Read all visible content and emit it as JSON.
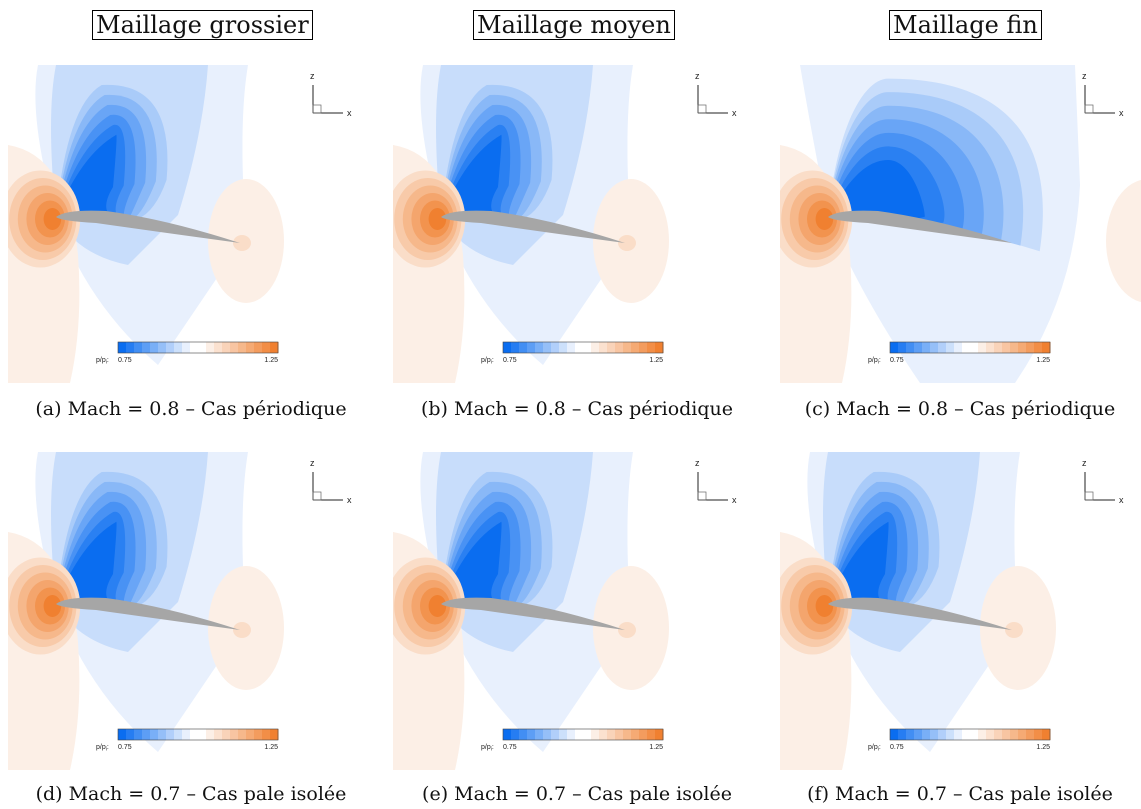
{
  "column_titles": [
    "Maillage grossier",
    "Maillage moyen",
    "Maillage fin"
  ],
  "panels": [
    {
      "caption": "(a) Mach = 0.8 – Cas périodique"
    },
    {
      "caption": "(b) Mach = 0.8 – Cas périodique"
    },
    {
      "caption": "(c) Mach = 0.8 – Cas périodique"
    },
    {
      "caption": "(d) Mach = 0.7 – Cas pale isolée"
    },
    {
      "caption": "(e) Mach = 0.7 – Cas pale isolée"
    },
    {
      "caption": "(f) Mach = 0.7 – Cas pale isolée"
    }
  ],
  "colorbar": {
    "label": "p/p",
    "label_subscript": "i",
    "min_label": "0.75",
    "max_label": "1.25",
    "min": 0.75,
    "max": 1.25,
    "low_color": "#0a6df0",
    "high_color": "#f08030"
  },
  "axes": {
    "z": "z",
    "x": "x"
  },
  "colors": {
    "airfoil": "#a6a6a6"
  }
}
